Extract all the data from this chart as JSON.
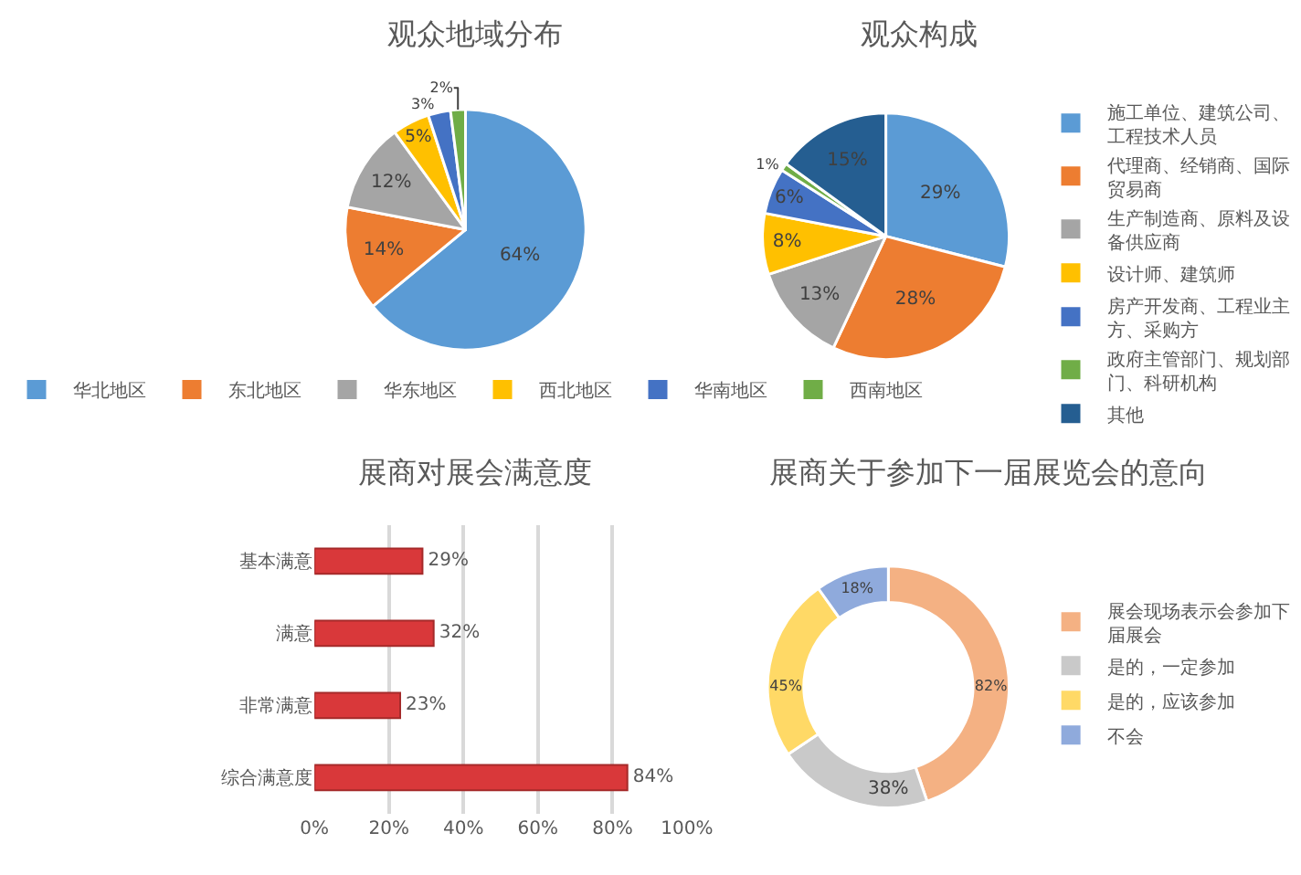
{
  "chart_data": [
    {
      "type": "pie",
      "title": "观众地域分布",
      "categories": [
        "华北地区",
        "东北地区",
        "华东地区",
        "西北地区",
        "华南地区",
        "西南地区"
      ],
      "values": [
        64,
        14,
        12,
        5,
        3,
        2
      ],
      "value_labels": [
        "64%",
        "14%",
        "12%",
        "5%",
        "3%",
        "2%"
      ],
      "colors": [
        "#5b9bd5",
        "#ed7d31",
        "#a5a5a5",
        "#ffc000",
        "#4472c4",
        "#70ad47"
      ],
      "legend": "bottom"
    },
    {
      "type": "pie",
      "title": "观众构成",
      "categories": [
        "施工单位、建筑公司、工程技术人员",
        "代理商、经销商、国际贸易商",
        "生产制造商、原料及设备供应商",
        "设计师、建筑师",
        "房产开发商、工程业主方、采购方",
        "政府主管部门、规划部门、科研机构",
        "其他"
      ],
      "values": [
        29,
        28,
        13,
        8,
        6,
        1,
        15
      ],
      "value_labels": [
        "29%",
        "28%",
        "13%",
        "8%",
        "6%",
        "1%",
        "15%"
      ],
      "colors": [
        "#5b9bd5",
        "#ed7d31",
        "#a5a5a5",
        "#ffc000",
        "#4472c4",
        "#70ad47",
        "#255e91"
      ],
      "legend": "right"
    },
    {
      "type": "bar",
      "orientation": "horizontal",
      "title": "展商对展会满意度",
      "categories": [
        "基本满意",
        "满意",
        "非常满意",
        "综合满意度"
      ],
      "values": [
        29,
        32,
        23,
        84
      ],
      "value_labels": [
        "29%",
        "32%",
        "23%",
        "84%"
      ],
      "color": "#d9383a",
      "xlim": [
        0,
        100
      ],
      "xticks": [
        {
          "value": 0,
          "label": "0%"
        },
        {
          "value": 20,
          "label": "20%"
        },
        {
          "value": 40,
          "label": "40%"
        },
        {
          "value": 60,
          "label": "60%"
        },
        {
          "value": 80,
          "label": "80%"
        },
        {
          "value": 100,
          "label": "100%"
        }
      ],
      "grid": "x"
    },
    {
      "type": "donut",
      "title": "展商关于参加下一届展览会的意向",
      "categories": [
        "展会现场表示会参加下届展会",
        "是的，一定参加",
        "是的，应该参加",
        "不会"
      ],
      "values": [
        82,
        38,
        45,
        18
      ],
      "value_labels": [
        "82%",
        "38%",
        "45%",
        "18%"
      ],
      "colors": [
        "#f4b183",
        "#c9c9c9",
        "#ffd966",
        "#8faadc"
      ],
      "legend": "right"
    }
  ]
}
